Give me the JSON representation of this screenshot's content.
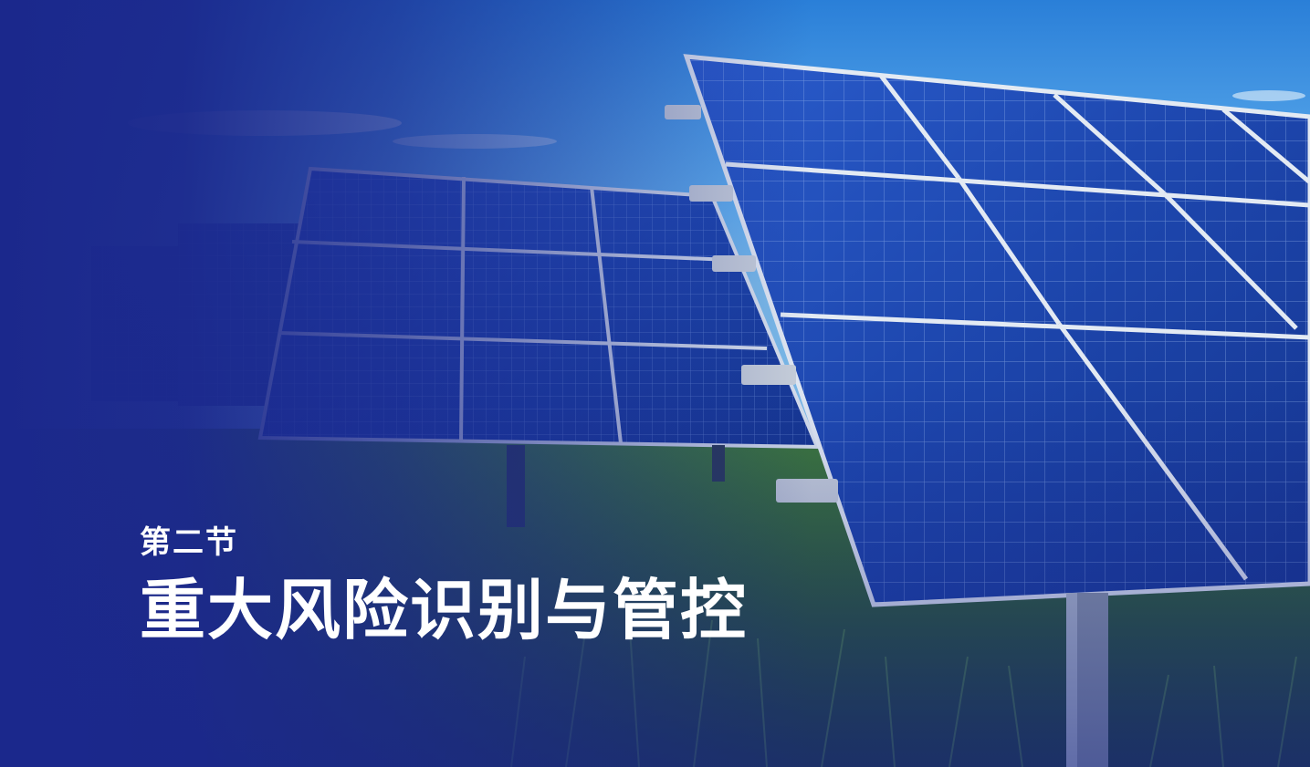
{
  "slide": {
    "section_label": "第二节",
    "section_title": "重大风险识别与管控"
  },
  "background": {
    "subject": "solar-panel-array-on-grass",
    "colors": {
      "overlay_blue": "#1b288c",
      "sky_blue": "#5fb0ee",
      "panel_blue": "#1f4fb8",
      "panel_frame": "#d9e2ee",
      "grass_green": "#2f6a3a",
      "title_text": "#ffffff"
    }
  }
}
